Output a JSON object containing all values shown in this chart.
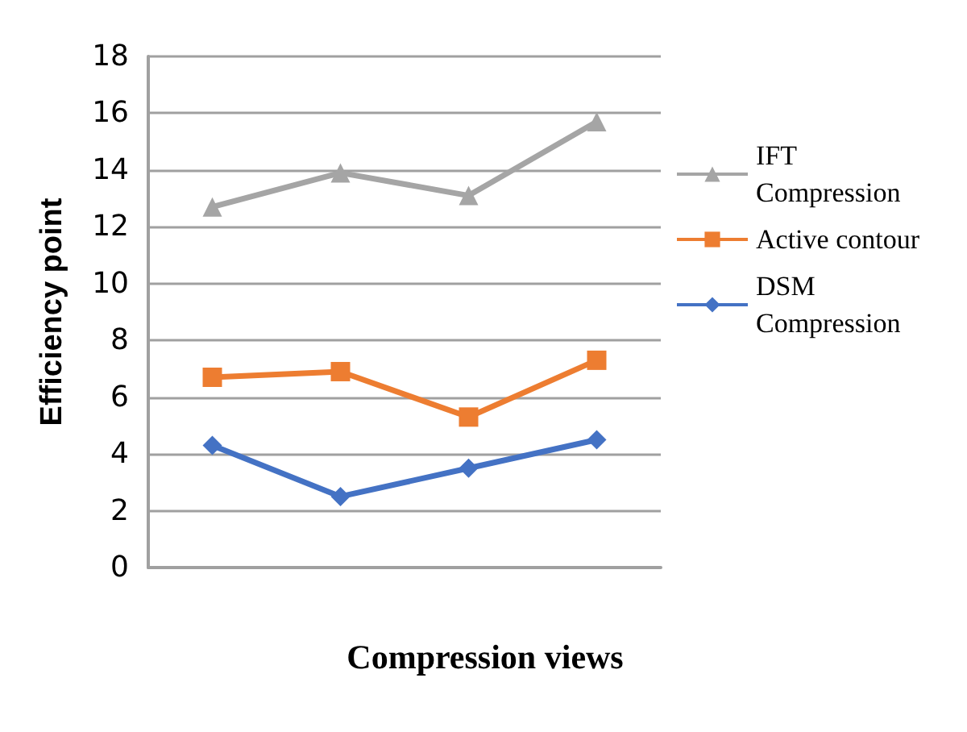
{
  "chart_data": {
    "type": "line",
    "xlabel": "Compression views",
    "ylabel": "Efficiency point",
    "categories": [
      null,
      null,
      null,
      null
    ],
    "series": [
      {
        "name": "IFT Compression",
        "color": "#a5a5a5",
        "marker": "triangle",
        "values": [
          12.7,
          13.9,
          13.1,
          15.7
        ]
      },
      {
        "name": "Active contour",
        "color": "#ed7d31",
        "marker": "square",
        "values": [
          6.7,
          6.9,
          5.3,
          7.3
        ]
      },
      {
        "name": "DSM Compression",
        "color": "#4472c4",
        "marker": "diamond",
        "values": [
          4.3,
          2.5,
          3.5,
          4.5
        ]
      }
    ],
    "ylim": [
      0,
      18
    ],
    "yticks": [
      0,
      2,
      4,
      6,
      8,
      10,
      12,
      14,
      16,
      18
    ],
    "grid": "y",
    "legend": "right",
    "tick_labels": "y"
  }
}
